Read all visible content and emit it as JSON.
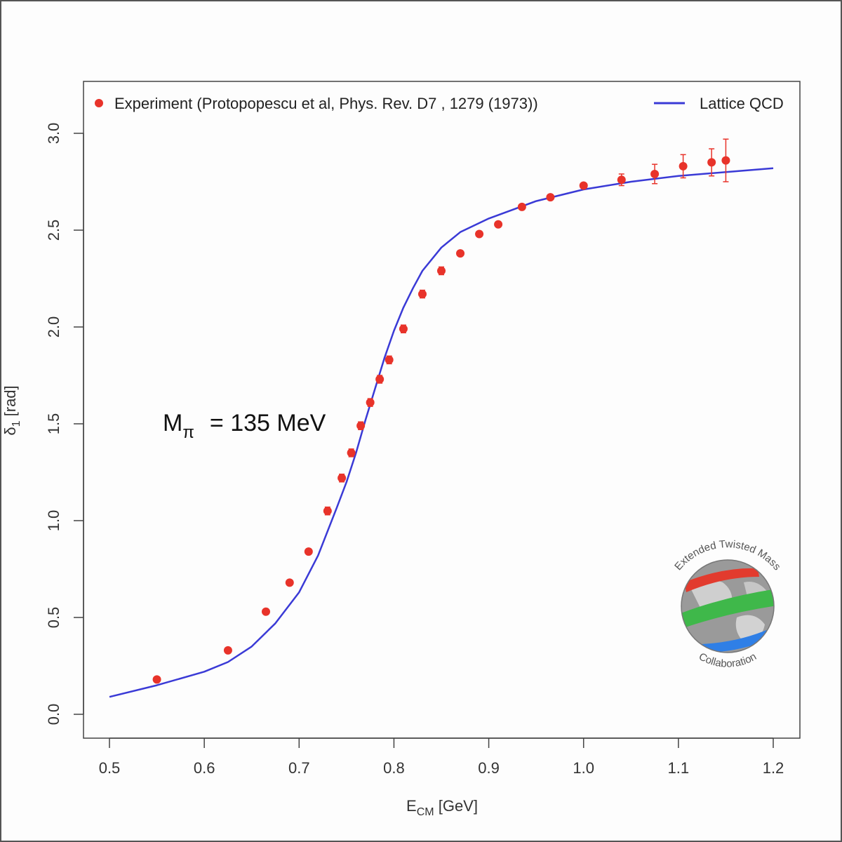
{
  "chart_data": {
    "type": "scatter",
    "xlabel": "E",
    "xlabel_sub": "CM",
    "xlabel_unit": " [GeV]",
    "ylabel": "δ",
    "ylabel_sub": "1",
    "ylabel_unit": " [rad]",
    "xlim": [
      0.5,
      1.2
    ],
    "ylim": [
      0.0,
      3.0
    ],
    "xticks": [
      "0.5",
      "0.6",
      "0.7",
      "0.8",
      "0.9",
      "1.0",
      "1.1",
      "1.2"
    ],
    "yticks": [
      "0.0",
      "0.5",
      "1.0",
      "1.5",
      "2.0",
      "2.5",
      "3.0"
    ],
    "grid": false,
    "legend_position": "top",
    "annotation": {
      "main": "M",
      "sub": "π",
      "rest": "= 135 MeV"
    },
    "series": [
      {
        "name": "Experiment (Protopopescu et al, Phys. Rev. D7 , 1279 (1973))",
        "kind": "points",
        "color": "#e8332a",
        "points": [
          {
            "x": 0.55,
            "y": 0.18,
            "err": 0.0
          },
          {
            "x": 0.625,
            "y": 0.33,
            "err": 0.0
          },
          {
            "x": 0.665,
            "y": 0.53,
            "err": 0.0
          },
          {
            "x": 0.69,
            "y": 0.68,
            "err": 0.0
          },
          {
            "x": 0.71,
            "y": 0.84,
            "err": 0.0
          },
          {
            "x": 0.73,
            "y": 1.05,
            "err": 0.02
          },
          {
            "x": 0.745,
            "y": 1.22,
            "err": 0.02
          },
          {
            "x": 0.755,
            "y": 1.35,
            "err": 0.02
          },
          {
            "x": 0.765,
            "y": 1.49,
            "err": 0.02
          },
          {
            "x": 0.775,
            "y": 1.61,
            "err": 0.02
          },
          {
            "x": 0.785,
            "y": 1.73,
            "err": 0.02
          },
          {
            "x": 0.795,
            "y": 1.83,
            "err": 0.02
          },
          {
            "x": 0.81,
            "y": 1.99,
            "err": 0.02
          },
          {
            "x": 0.83,
            "y": 2.17,
            "err": 0.02
          },
          {
            "x": 0.85,
            "y": 2.29,
            "err": 0.02
          },
          {
            "x": 0.87,
            "y": 2.38,
            "err": 0.0
          },
          {
            "x": 0.89,
            "y": 2.48,
            "err": 0.0
          },
          {
            "x": 0.91,
            "y": 2.53,
            "err": 0.0
          },
          {
            "x": 0.935,
            "y": 2.62,
            "err": 0.0
          },
          {
            "x": 0.965,
            "y": 2.67,
            "err": 0.0
          },
          {
            "x": 1.0,
            "y": 2.73,
            "err": 0.0
          },
          {
            "x": 1.04,
            "y": 2.76,
            "err": 0.03
          },
          {
            "x": 1.075,
            "y": 2.79,
            "err": 0.05
          },
          {
            "x": 1.105,
            "y": 2.83,
            "err": 0.06
          },
          {
            "x": 1.135,
            "y": 2.85,
            "err": 0.07
          },
          {
            "x": 1.15,
            "y": 2.86,
            "err": 0.11
          }
        ]
      },
      {
        "name": "Lattice QCD",
        "kind": "line",
        "color": "#3a3ad6",
        "points": [
          {
            "x": 0.5,
            "y": 0.09
          },
          {
            "x": 0.55,
            "y": 0.15
          },
          {
            "x": 0.6,
            "y": 0.22
          },
          {
            "x": 0.625,
            "y": 0.27
          },
          {
            "x": 0.65,
            "y": 0.35
          },
          {
            "x": 0.675,
            "y": 0.47
          },
          {
            "x": 0.7,
            "y": 0.63
          },
          {
            "x": 0.72,
            "y": 0.82
          },
          {
            "x": 0.74,
            "y": 1.07
          },
          {
            "x": 0.75,
            "y": 1.2
          },
          {
            "x": 0.76,
            "y": 1.35
          },
          {
            "x": 0.77,
            "y": 1.52
          },
          {
            "x": 0.78,
            "y": 1.68
          },
          {
            "x": 0.79,
            "y": 1.84
          },
          {
            "x": 0.8,
            "y": 1.98
          },
          {
            "x": 0.81,
            "y": 2.1
          },
          {
            "x": 0.82,
            "y": 2.2
          },
          {
            "x": 0.83,
            "y": 2.29
          },
          {
            "x": 0.85,
            "y": 2.41
          },
          {
            "x": 0.87,
            "y": 2.49
          },
          {
            "x": 0.9,
            "y": 2.56
          },
          {
            "x": 0.95,
            "y": 2.65
          },
          {
            "x": 1.0,
            "y": 2.71
          },
          {
            "x": 1.05,
            "y": 2.75
          },
          {
            "x": 1.1,
            "y": 2.78
          },
          {
            "x": 1.15,
            "y": 2.8
          },
          {
            "x": 1.2,
            "y": 2.82
          }
        ]
      }
    ]
  },
  "logo": {
    "top_text": "Extended Twisted Mass",
    "bottom_text": "Collaboration"
  }
}
